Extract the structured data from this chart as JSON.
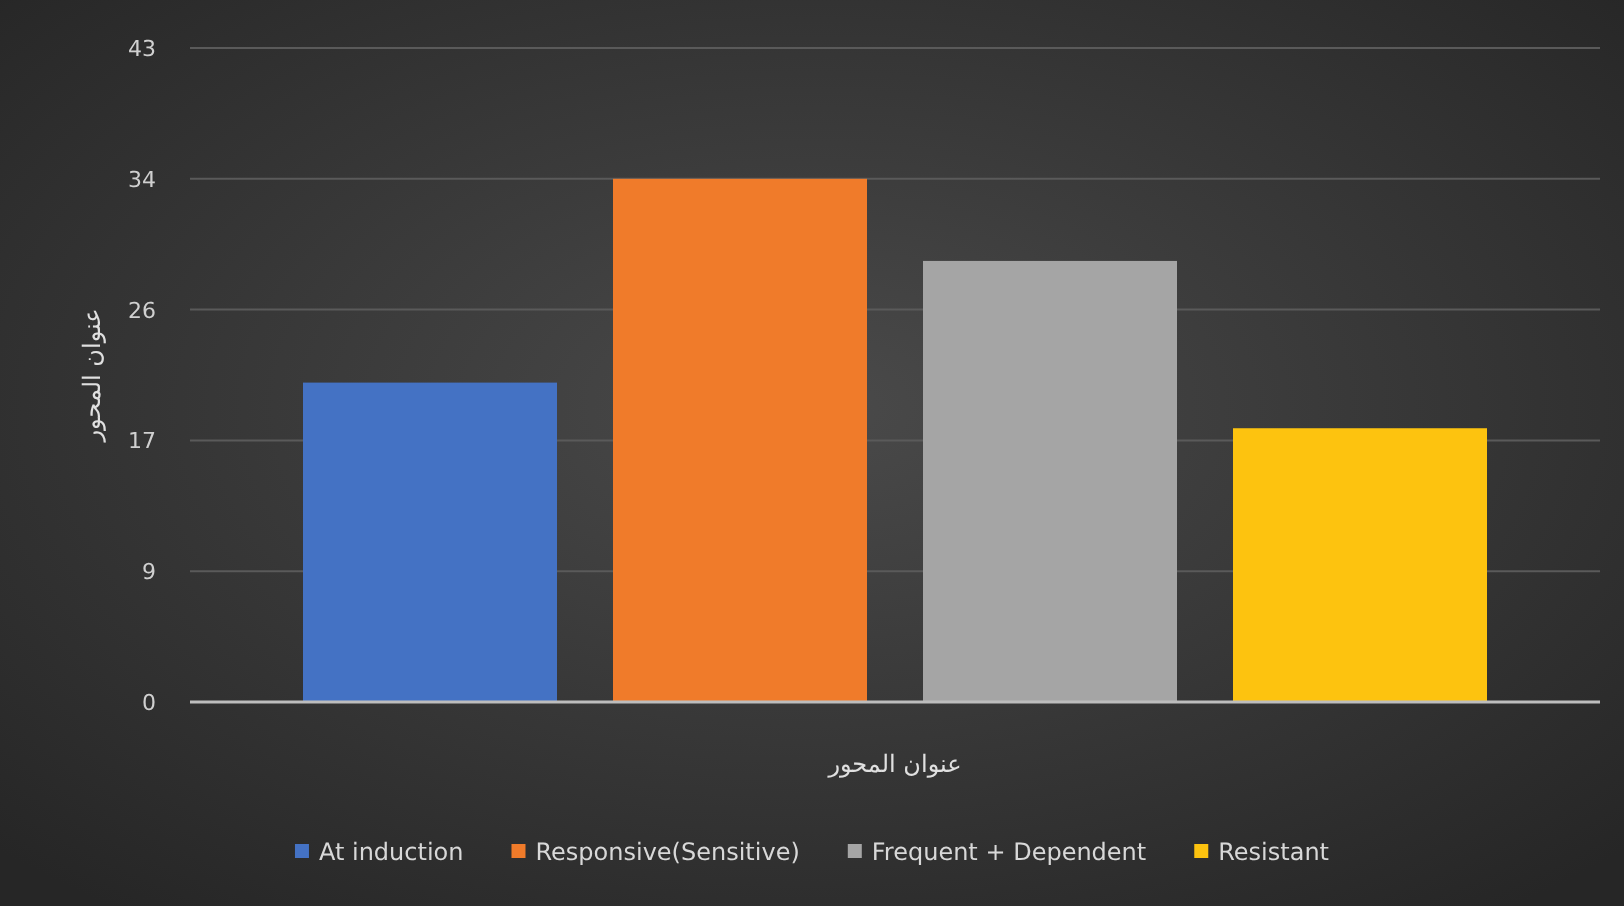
{
  "chart_data": {
    "type": "bar",
    "xlabel": "عنوان المحور",
    "ylabel": "عنوان المحور",
    "categories": [
      null
    ],
    "series": [
      {
        "name": "At induction",
        "color": "#4472c4",
        "values": [
          21
        ]
      },
      {
        "name": "Responsive(Sensitive)",
        "color": "#f07b2a",
        "values": [
          34.4
        ]
      },
      {
        "name": "Frequent + Dependent",
        "color": "#a5a5a5",
        "values": [
          29
        ]
      },
      {
        "name": "Resistant",
        "color": "#fdc30f",
        "values": [
          18
        ]
      }
    ],
    "ylim": [
      0,
      43
    ],
    "yticks": [
      0,
      {
        "value": 8.6,
        "label": "9"
      },
      {
        "value": 17.2,
        "label": "17"
      },
      {
        "value": 25.8,
        "label": "26"
      },
      {
        "value": 34.4,
        "label": "34"
      },
      43
    ],
    "grid": "y",
    "legend": "bottom"
  }
}
